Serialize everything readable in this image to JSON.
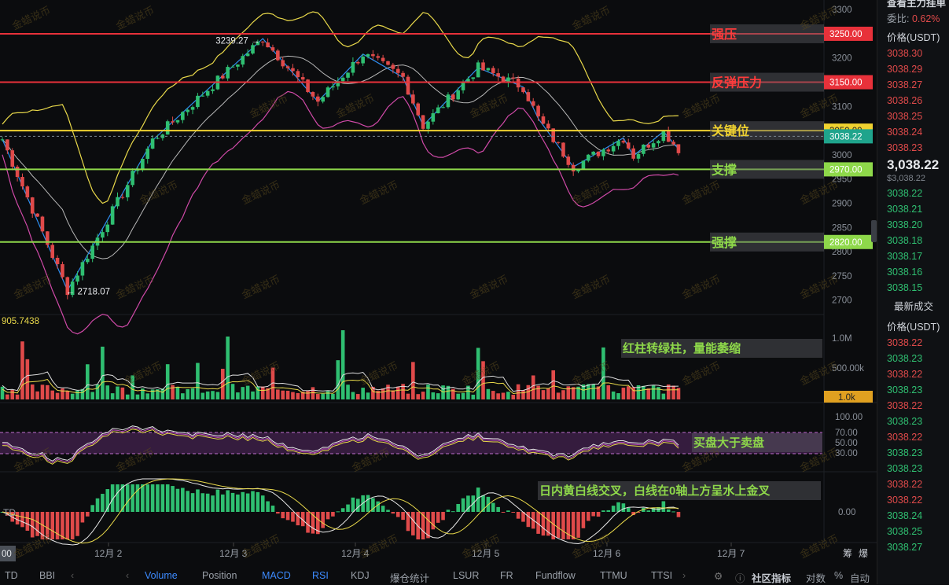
{
  "chart_data": {
    "type": "candlestick",
    "symbol_quote": "USDT",
    "price_axis": {
      "ticks": [
        3300,
        3250,
        3200,
        3150,
        3100,
        3050,
        3000,
        2950,
        2900,
        2850,
        2800,
        2750,
        2700
      ],
      "range": [
        2680,
        3310
      ]
    },
    "time_axis": {
      "labels": [
        "12月 2",
        "12月 3",
        "12月 4",
        "12月 5",
        "12月 6",
        "12月 7"
      ]
    },
    "levels": [
      {
        "name": "强压",
        "value": 3250.0,
        "label": "3250.00",
        "color": "#e8313a"
      },
      {
        "name": "反弹压力",
        "value": 3150.0,
        "label": "3150.00",
        "color": "#e8313a"
      },
      {
        "name": "关键位",
        "value": 3050.0,
        "label": "3050.00",
        "color": "#f0d230"
      },
      {
        "name": "支撑",
        "value": 2970.0,
        "label": "2970.00",
        "color": "#8ed84a"
      },
      {
        "name": "强撑",
        "value": 2820.0,
        "label": "2820.00",
        "color": "#8ed84a"
      }
    ],
    "current_price": {
      "value": 3038.22,
      "label": "3038.22"
    },
    "annotations": {
      "high": "3239.27 →",
      "low": "← 2718.07"
    },
    "zigzag": [
      [
        0,
        3032
      ],
      [
        13,
        2720
      ],
      [
        30,
        3030
      ],
      [
        52,
        3240
      ],
      [
        63,
        3110
      ],
      [
        72,
        3208
      ],
      [
        80,
        3160
      ],
      [
        84,
        3060
      ],
      [
        95,
        3180
      ],
      [
        104,
        3140
      ],
      [
        107,
        3075
      ],
      [
        114,
        2975
      ],
      [
        124,
        3035
      ],
      [
        126,
        2998
      ],
      [
        132,
        3048
      ],
      [
        135,
        3012
      ]
    ],
    "volume": {
      "label": "905.7438",
      "ticks": [
        "1.0M",
        "500.00k"
      ],
      "current": "1.0k"
    },
    "rsi": {
      "ticks": [
        "100.00",
        "70.00",
        "50.00",
        "30.00"
      ]
    },
    "macd": {
      "ticks": [
        "0.00"
      ]
    }
  },
  "notes": {
    "volume": "红柱转绿柱，量能萎缩",
    "rsi": "买盘大于卖盘",
    "macd": "日内黄白线交叉，白线在0轴上方呈水上金叉"
  },
  "left_edge": {
    "td": "TD",
    "time_chip": "00"
  },
  "watermark": "金蜡说币",
  "sidebar": {
    "top_text": "查看主力挂单",
    "ratio_label": "委比:",
    "ratio_value": "0.62%",
    "price_header": "价格(USDT)",
    "asks": [
      "3038.30",
      "3038.29",
      "3038.27",
      "3038.26",
      "3038.25",
      "3038.24",
      "3038.23"
    ],
    "last_price": "3,038.22",
    "last_sub": "$3,038.22",
    "bids": [
      "3038.22",
      "3038.21",
      "3038.20",
      "3038.18",
      "3038.17",
      "3038.16",
      "3038.15"
    ],
    "trades_title": "最新成交",
    "trades_header": "价格(USDT)",
    "trades": [
      "3038.22",
      "3038.23",
      "3038.22",
      "3038.23",
      "3038.22",
      "3038.23",
      "3038.22",
      "3038.23",
      "3038.23",
      "3038.22",
      "3038.22",
      "3038.24",
      "3038.25",
      "3038.27"
    ]
  },
  "toolbar": {
    "items": [
      "BBI",
      "Volume",
      "Position",
      "MACD",
      "RSI",
      "KDJ",
      "爆仓统计",
      "LSUR",
      "FR",
      "Fundflow",
      "TTMU",
      "TTSI"
    ],
    "right": [
      "社区指标",
      "对数",
      "%",
      "自动"
    ],
    "corner": [
      "筹",
      "爆"
    ]
  },
  "colors": {
    "up": "#2fbf71",
    "down": "#e04a4a",
    "accent_blue": "#3d8bff",
    "rsi_band": "#5a2a66"
  }
}
